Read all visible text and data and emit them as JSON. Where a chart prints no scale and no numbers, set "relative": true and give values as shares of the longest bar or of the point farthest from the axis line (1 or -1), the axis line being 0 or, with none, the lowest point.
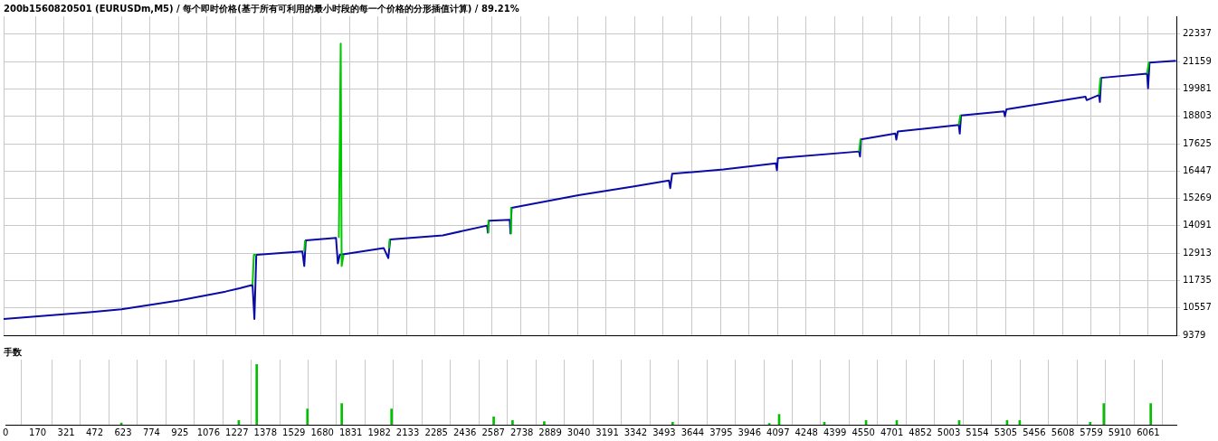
{
  "chart_data": [
    {
      "type": "line",
      "title": "200b1560820501 (EURUSDm,M5) / 每个即时价格(基于所有可利用的最小时段的每一个价格的分形插值计算) / 89.21%",
      "series": [
        {
          "color": "#00c800",
          "x": [
            1318,
            1325,
            1338,
            1460,
            1592,
            1596,
            1600,
            1700,
            1775,
            1785,
            1790,
            1800,
            1900,
            2040,
            2044,
            2047,
            2300,
            2564,
            2567,
            2570,
            2620,
            2684,
            2687,
            2690,
            3600,
            4530,
            4537,
            4540,
            4900,
            5058,
            5066,
            5070,
            5500,
            5800,
            5808,
            5812,
            5950,
            6055,
            6064,
            6068
          ],
          "values": [
            11550,
            12840,
            12840,
            null,
            12990,
            13460,
            13460,
            null,
            13570,
            21930,
            12360,
            12840,
            null,
            13130,
            13500,
            13500,
            null,
            13800,
            14310,
            14310,
            null,
            13760,
            14860,
            14860,
            null,
            17290,
            17810,
            17810,
            null,
            18430,
            18840,
            18840,
            null,
            19720,
            20460,
            20460,
            null,
            20640,
            21120,
            21120
          ]
        },
        {
          "color": "#0a0aa6",
          "x": [
            0,
            455,
            624,
            935,
            1175,
            1250,
            1318,
            1328,
            1338,
            1582,
            1592,
            1600,
            1760,
            1770,
            1780,
            2013,
            2037,
            2047,
            2325,
            2560,
            2564,
            2570,
            2680,
            2684,
            2690,
            3044,
            3331,
            3523,
            3530,
            3540,
            3811,
            4089,
            4095,
            4100,
            4530,
            4535,
            4540,
            4722,
            4727,
            4735,
            5058,
            5063,
            5070,
            5297,
            5302,
            5310,
            5729,
            5735,
            5800,
            5805,
            5812,
            6055,
            6060,
            6068,
            6208
          ],
          "values": [
            10080,
            10370,
            10500,
            10890,
            11260,
            11400,
            11550,
            10080,
            12840,
            12990,
            12360,
            13460,
            13570,
            12470,
            12840,
            13130,
            12700,
            13500,
            13680,
            14100,
            13800,
            14310,
            14350,
            13760,
            14860,
            15410,
            15780,
            16040,
            15710,
            16330,
            16520,
            16780,
            16480,
            17000,
            17290,
            17070,
            17810,
            18060,
            17800,
            18150,
            18430,
            18060,
            18840,
            19020,
            18800,
            19100,
            19650,
            19500,
            19720,
            19420,
            20460,
            20640,
            20010,
            21120,
            21190
          ]
        }
      ],
      "xlim": [
        0,
        6210
      ],
      "xticks": [
        0,
        170,
        321,
        472,
        623,
        774,
        925,
        1076,
        1227,
        1378,
        1529,
        1680,
        1831,
        1982,
        2133,
        2285,
        2436,
        2587,
        2738,
        2889,
        3040,
        3191,
        3342,
        3493,
        3644,
        3795,
        3946,
        4097,
        4248,
        4399,
        4550,
        4701,
        4852,
        5003,
        5154,
        5305,
        5456,
        5608,
        5759,
        5910,
        6061
      ],
      "ylim": [
        9379,
        23110
      ],
      "yticks": [
        9379,
        10557,
        11735,
        12913,
        14091,
        15269,
        16447,
        17625,
        18803,
        19981,
        21159,
        22337
      ],
      "grid": true,
      "tick_labels": "y"
    },
    {
      "type": "bar",
      "title": "手数",
      "relative": true,
      "color": "#00c000",
      "x": [
        614,
        1237,
        1332,
        1601,
        1783,
        2047,
        2589,
        2689,
        2857,
        3538,
        4051,
        4103,
        4343,
        4564,
        4727,
        5058,
        5312,
        5379,
        5753,
        5825,
        6074
      ],
      "values": [
        0.03,
        0.07,
        1.0,
        0.26,
        0.35,
        0.26,
        0.13,
        0.07,
        0.05,
        0.04,
        0.02,
        0.17,
        0.04,
        0.07,
        0.07,
        0.07,
        0.07,
        0.07,
        0.04,
        0.35,
        0.35
      ],
      "xlim": [
        0,
        6210
      ],
      "xticks": [
        0,
        170,
        321,
        472,
        623,
        774,
        925,
        1076,
        1227,
        1378,
        1529,
        1680,
        1831,
        1982,
        2133,
        2285,
        2436,
        2587,
        2738,
        2889,
        3040,
        3191,
        3342,
        3493,
        3644,
        3795,
        3946,
        4097,
        4248,
        4399,
        4550,
        4701,
        4852,
        5003,
        5154,
        5305,
        5456,
        5608,
        5759,
        5910,
        6061
      ],
      "grid": "x",
      "tick_labels": "x"
    }
  ]
}
